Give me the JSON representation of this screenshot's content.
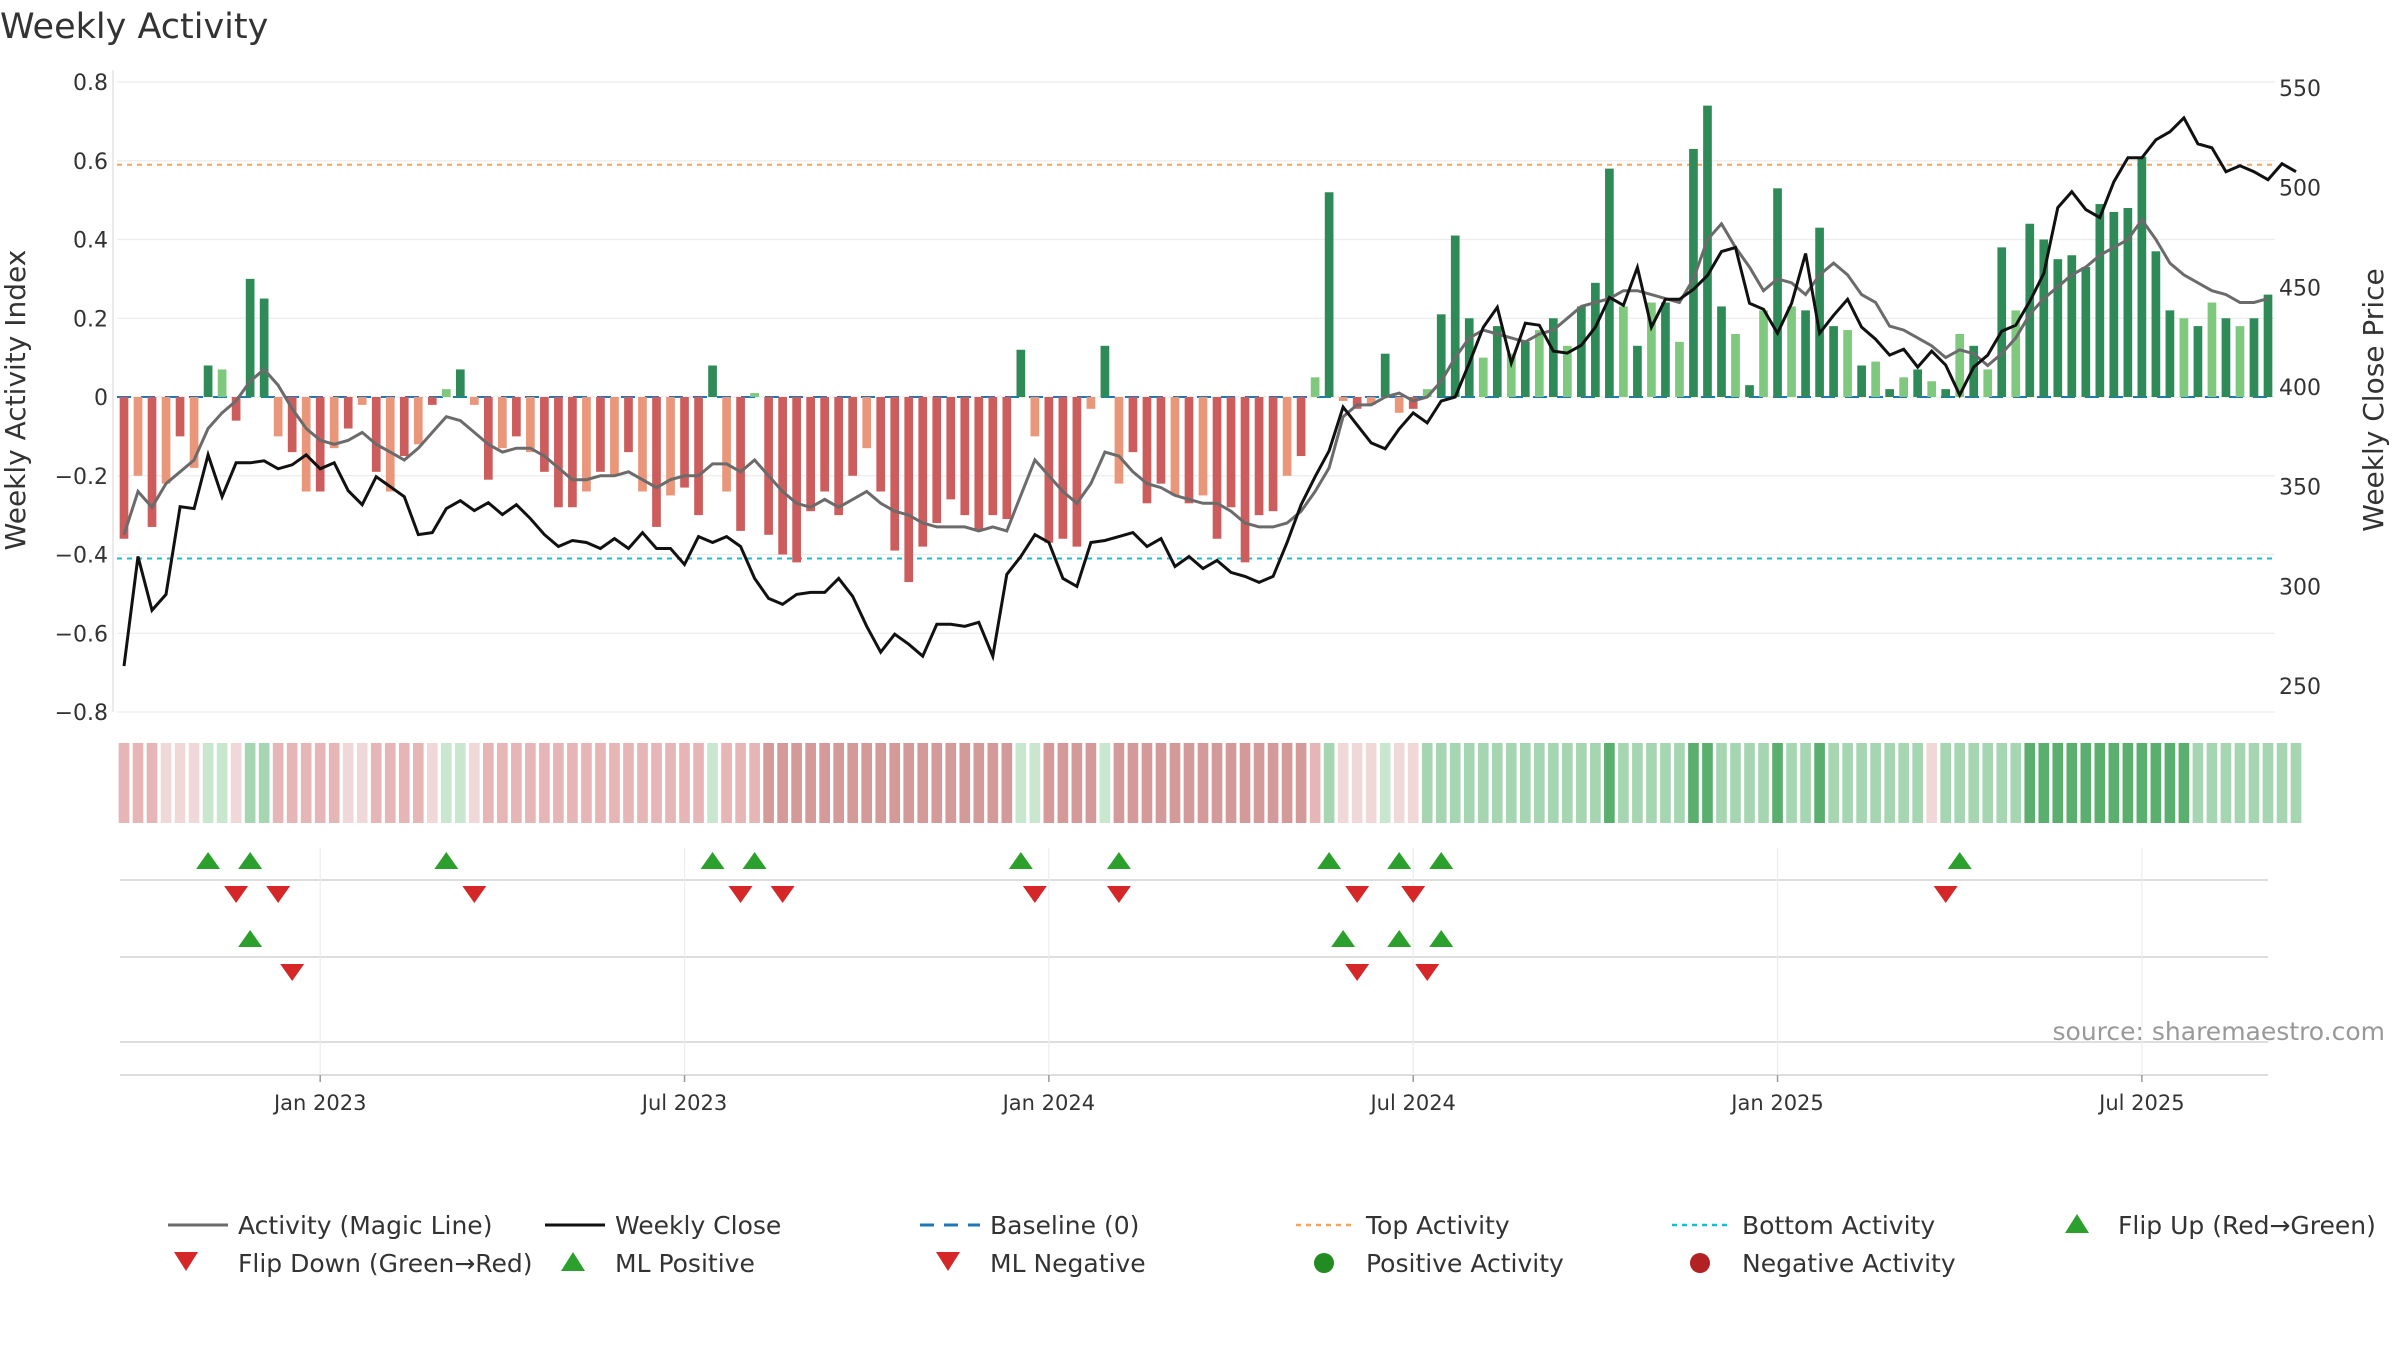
{
  "title": "Weekly Activity",
  "source": "source: sharemaestro.com",
  "chart_data": {
    "type": "bar",
    "title": "Weekly Activity",
    "ylabel_left": "Weekly Activity Index",
    "ylabel_right": "Weekly Close Price",
    "ylim_left": [
      -0.8,
      0.8
    ],
    "ylim_right": [
      237,
      553
    ],
    "left_ticks": [
      "0.8",
      "0.6",
      "0.4",
      "0.2",
      "0",
      "−0.2",
      "−0.4",
      "−0.6",
      "−0.8"
    ],
    "right_ticks": [
      "550",
      "500",
      "450",
      "400",
      "350",
      "300",
      "250"
    ],
    "x_tick_labels": [
      "Jan 2023",
      "Jul 2023",
      "Jan 2024",
      "Jul 2024",
      "Jan 2025",
      "Jul 2025"
    ],
    "x_tick_weeks": [
      14,
      40,
      66,
      92,
      118,
      144
    ],
    "top_activity": 0.59,
    "bottom_activity": -0.41,
    "baseline": 0,
    "activity": [
      -0.36,
      -0.2,
      -0.33,
      -0.22,
      -0.1,
      -0.18,
      0.08,
      0.07,
      -0.06,
      0.3,
      0.25,
      -0.1,
      -0.14,
      -0.24,
      -0.24,
      -0.13,
      -0.08,
      -0.02,
      -0.19,
      -0.24,
      -0.15,
      -0.12,
      -0.02,
      0.02,
      0.07,
      -0.02,
      -0.21,
      -0.13,
      -0.1,
      -0.14,
      -0.19,
      -0.28,
      -0.28,
      -0.24,
      -0.19,
      -0.2,
      -0.14,
      -0.24,
      -0.33,
      -0.25,
      -0.23,
      -0.3,
      0.08,
      -0.24,
      -0.34,
      0.01,
      -0.35,
      -0.4,
      -0.42,
      -0.29,
      -0.24,
      -0.3,
      -0.2,
      -0.13,
      -0.24,
      -0.39,
      -0.47,
      -0.38,
      -0.32,
      -0.26,
      -0.3,
      -0.34,
      -0.3,
      -0.31,
      0.12,
      -0.1,
      -0.37,
      -0.36,
      -0.38,
      -0.03,
      0.13,
      -0.22,
      -0.14,
      -0.27,
      -0.22,
      -0.25,
      -0.27,
      -0.25,
      -0.36,
      -0.28,
      -0.42,
      -0.3,
      -0.29,
      -0.2,
      -0.15,
      0.05,
      0.52,
      -0.01,
      -0.03,
      -0.02,
      0.11,
      -0.04,
      -0.03,
      0.02,
      0.21,
      0.41,
      0.2,
      0.1,
      0.18,
      0.11,
      0.14,
      0.17,
      0.2,
      0.13,
      0.23,
      0.29,
      0.58,
      0.23,
      0.13,
      0.24,
      0.24,
      0.14,
      0.63,
      0.74,
      0.23,
      0.16,
      0.03,
      0.22,
      0.53,
      0.23,
      0.22,
      0.43,
      0.18,
      0.17,
      0.08,
      0.09,
      0.02,
      0.05,
      0.07,
      0.04,
      0.02,
      0.16,
      0.13,
      0.07,
      0.38,
      0.22,
      0.44,
      0.4,
      0.35,
      0.36,
      0.33,
      0.49,
      0.47,
      0.48,
      0.61,
      0.37,
      0.22,
      0.2,
      0.18,
      0.24,
      0.2,
      0.18,
      0.2,
      0.26
    ],
    "magic_line": [
      -0.35,
      -0.24,
      -0.28,
      -0.22,
      -0.19,
      -0.16,
      -0.08,
      -0.04,
      -0.01,
      0.04,
      0.07,
      0.03,
      -0.03,
      -0.08,
      -0.11,
      -0.12,
      -0.11,
      -0.09,
      -0.12,
      -0.14,
      -0.16,
      -0.13,
      -0.09,
      -0.05,
      -0.06,
      -0.09,
      -0.12,
      -0.14,
      -0.13,
      -0.13,
      -0.15,
      -0.18,
      -0.21,
      -0.21,
      -0.2,
      -0.2,
      -0.19,
      -0.21,
      -0.23,
      -0.21,
      -0.2,
      -0.2,
      -0.17,
      -0.17,
      -0.19,
      -0.16,
      -0.2,
      -0.24,
      -0.27,
      -0.28,
      -0.26,
      -0.28,
      -0.26,
      -0.24,
      -0.27,
      -0.29,
      -0.3,
      -0.32,
      -0.33,
      -0.33,
      -0.33,
      -0.34,
      -0.33,
      -0.34,
      -0.25,
      -0.16,
      -0.2,
      -0.24,
      -0.27,
      -0.22,
      -0.14,
      -0.15,
      -0.19,
      -0.22,
      -0.23,
      -0.25,
      -0.26,
      -0.27,
      -0.27,
      -0.29,
      -0.32,
      -0.33,
      -0.33,
      -0.32,
      -0.29,
      -0.24,
      -0.18,
      -0.05,
      -0.02,
      -0.02,
      0.0,
      0.01,
      -0.01,
      0.0,
      0.04,
      0.1,
      0.15,
      0.17,
      0.16,
      0.15,
      0.14,
      0.16,
      0.17,
      0.2,
      0.23,
      0.24,
      0.25,
      0.27,
      0.27,
      0.26,
      0.25,
      0.24,
      0.3,
      0.4,
      0.44,
      0.38,
      0.33,
      0.27,
      0.3,
      0.29,
      0.26,
      0.31,
      0.34,
      0.31,
      0.26,
      0.24,
      0.18,
      0.17,
      0.15,
      0.13,
      0.1,
      0.12,
      0.11,
      0.08,
      0.11,
      0.15,
      0.21,
      0.25,
      0.28,
      0.31,
      0.33,
      0.36,
      0.38,
      0.4,
      0.45,
      0.4,
      0.34,
      0.31,
      0.29,
      0.27,
      0.26,
      0.24,
      0.24,
      0.25
    ],
    "weekly_close": [
      260,
      315,
      288,
      296,
      340,
      339,
      366,
      345,
      362,
      362,
      363,
      359,
      361,
      366,
      359,
      362,
      348,
      341,
      355,
      350,
      345,
      326,
      327,
      339,
      343,
      338,
      342,
      336,
      341,
      334,
      326,
      320,
      323,
      322,
      319,
      324,
      319,
      327,
      319,
      319,
      311,
      325,
      322,
      325,
      320,
      304,
      294,
      291,
      296,
      297,
      297,
      304,
      295,
      280,
      267,
      276,
      271,
      265,
      281,
      281,
      280,
      282,
      265,
      306,
      315,
      326,
      322,
      304,
      300,
      322,
      323,
      325,
      327,
      320,
      324,
      310,
      315,
      309,
      313,
      307,
      305,
      302,
      305,
      322,
      341,
      355,
      368,
      390,
      381,
      372,
      369,
      379,
      387,
      382,
      393,
      395,
      412,
      430,
      440,
      412,
      432,
      431,
      418,
      417,
      421,
      430,
      445,
      441,
      460,
      430,
      444,
      444,
      449,
      456,
      468,
      470,
      442,
      439,
      427,
      442,
      467,
      427,
      436,
      444,
      430,
      424,
      416,
      419,
      410,
      418,
      411,
      396,
      410,
      416,
      428,
      431,
      443,
      457,
      490,
      498,
      489,
      485,
      503,
      515,
      515,
      524,
      528,
      535,
      522,
      520,
      508,
      511,
      508,
      504,
      512,
      508
    ],
    "heat_levels": [
      -2,
      -2,
      -2,
      -1,
      -1,
      -1,
      1,
      1,
      -1,
      2,
      2,
      -2,
      -2,
      -2,
      -2,
      -2,
      -1,
      -1,
      -2,
      -2,
      -2,
      -2,
      -1,
      1,
      1,
      -1,
      -2,
      -2,
      -2,
      -2,
      -2,
      -2,
      -2,
      -2,
      -2,
      -2,
      -2,
      -2,
      -2,
      -2,
      -2,
      -2,
      1,
      -2,
      -2,
      -2,
      -3,
      -3,
      -3,
      -3,
      -3,
      -3,
      -3,
      -3,
      -3,
      -3,
      -3,
      -3,
      -3,
      -3,
      -3,
      -3,
      -3,
      -3,
      1,
      1,
      -3,
      -3,
      -3,
      -3,
      1,
      -3,
      -3,
      -3,
      -3,
      -3,
      -3,
      -3,
      -3,
      -3,
      -3,
      -3,
      -3,
      -3,
      -3,
      -2,
      2,
      -1,
      -1,
      -1,
      1,
      -1,
      -1,
      2,
      2,
      2,
      2,
      2,
      2,
      2,
      2,
      2,
      2,
      2,
      2,
      2,
      3,
      2,
      2,
      2,
      2,
      2,
      3,
      3,
      2,
      2,
      2,
      2,
      3,
      2,
      2,
      3,
      2,
      2,
      2,
      2,
      2,
      2,
      2,
      -1,
      2,
      2,
      2,
      2,
      2,
      2,
      3,
      3,
      3,
      3,
      3,
      3,
      3,
      3,
      3,
      3,
      3,
      3,
      2,
      2,
      2,
      2,
      2,
      2,
      2,
      2
    ],
    "row1_flip_up_weeks": [
      6,
      9,
      23,
      42,
      45,
      64,
      71,
      86,
      91,
      94,
      131
    ],
    "row1_flip_down_weeks": [
      8,
      11,
      25,
      44,
      47,
      65,
      71,
      88,
      92,
      130
    ],
    "row2_ml_positive_weeks": [
      9,
      87,
      91,
      94
    ],
    "row2_ml_negative_weeks": [
      12,
      88,
      93
    ]
  },
  "legend": {
    "activity_magic_line": "Activity (Magic Line)",
    "weekly_close": "Weekly Close",
    "baseline": "Baseline (0)",
    "top_activity": "Top Activity",
    "bottom_activity": "Bottom Activity",
    "flip_up": "Flip Up (Red→Green)",
    "flip_down": "Flip Down (Green→Red)",
    "ml_positive": "ML Positive",
    "ml_negative": "ML Negative",
    "positive_activity": "Positive Activity",
    "negative_activity": "Negative Activity"
  },
  "colors": {
    "green_dark": "#2e8b57",
    "green_light": "#7fc97f",
    "red_dark": "#cd5c5c",
    "red_light": "#e9967a",
    "magic_line": "#6b6b6b",
    "close_line": "#111111",
    "top_line": "#f4a460",
    "bottom_line": "#17becf",
    "baseline": "#1f77b4",
    "marker_up": "#2ca02c",
    "marker_down": "#d62728",
    "dot_positive": "#228b22",
    "dot_negative": "#b22222"
  }
}
